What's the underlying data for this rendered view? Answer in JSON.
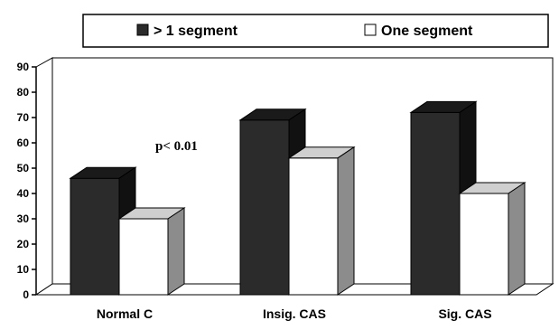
{
  "chart_data": {
    "type": "bar",
    "categories": [
      "Normal C",
      "Insig. CAS",
      "Sig. CAS"
    ],
    "series": [
      {
        "name": "> 1 segment",
        "values": [
          46,
          69,
          72
        ],
        "color": "#2b2b2b"
      },
      {
        "name": "One segment",
        "values": [
          30,
          54,
          40
        ],
        "color": "#ffffff"
      }
    ],
    "ylim": [
      0,
      90
    ],
    "yticks": [
      0,
      10,
      20,
      30,
      40,
      50,
      60,
      70,
      80,
      90
    ],
    "legend_position": "top",
    "annotation": "p< 0.01",
    "grid": false,
    "style": "3d"
  }
}
